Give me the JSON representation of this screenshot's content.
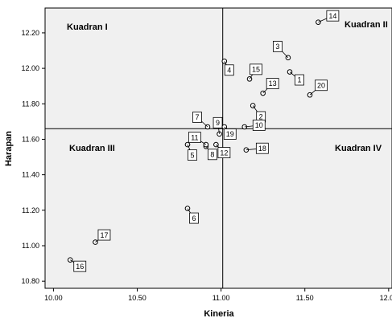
{
  "chart_data": {
    "type": "scatter",
    "title": "",
    "xlabel": "Kineria",
    "ylabel": "Harapan",
    "xlim": [
      9.95,
      12.02
    ],
    "ylim": [
      10.76,
      12.34
    ],
    "xticks": [
      "10.00",
      "10.50",
      "11.00",
      "11.50",
      "12.00"
    ],
    "xtick_values": [
      10.0,
      10.5,
      11.0,
      11.5,
      12.0
    ],
    "yticks": [
      "10.80",
      "11.00",
      "11.20",
      "11.40",
      "11.60",
      "11.80",
      "12.00",
      "12.20"
    ],
    "ytick_values": [
      10.8,
      11.0,
      11.2,
      11.4,
      11.6,
      11.8,
      12.0,
      12.2
    ],
    "reference_lines": {
      "x": 11.01,
      "y": 11.66
    },
    "quadrant_labels": {
      "q1": "Kuadran I",
      "q2": "Kuadran II",
      "q3": "Kuadran III",
      "q4": "Kuadran IV"
    },
    "grid": false,
    "points": [
      {
        "label": "1",
        "x": 11.41,
        "y": 11.98
      },
      {
        "label": "2",
        "x": 11.19,
        "y": 11.79
      },
      {
        "label": "3",
        "x": 11.4,
        "y": 12.06
      },
      {
        "label": "4",
        "x": 11.02,
        "y": 12.04
      },
      {
        "label": "5",
        "x": 10.8,
        "y": 11.57
      },
      {
        "label": "6",
        "x": 10.8,
        "y": 11.21
      },
      {
        "label": "7",
        "x": 10.92,
        "y": 11.67
      },
      {
        "label": "8",
        "x": 10.91,
        "y": 11.56
      },
      {
        "label": "9",
        "x": 10.99,
        "y": 11.63
      },
      {
        "label": "10",
        "x": 11.14,
        "y": 11.67
      },
      {
        "label": "11",
        "x": 10.91,
        "y": 11.57
      },
      {
        "label": "12",
        "x": 10.97,
        "y": 11.57
      },
      {
        "label": "13",
        "x": 11.25,
        "y": 11.86
      },
      {
        "label": "14",
        "x": 11.58,
        "y": 12.26
      },
      {
        "label": "15",
        "x": 11.17,
        "y": 11.94
      },
      {
        "label": "16",
        "x": 10.1,
        "y": 10.92
      },
      {
        "label": "17",
        "x": 10.25,
        "y": 11.02
      },
      {
        "label": "18",
        "x": 11.15,
        "y": 11.54
      },
      {
        "label": "19",
        "x": 11.02,
        "y": 11.67
      },
      {
        "label": "20",
        "x": 11.53,
        "y": 11.85
      }
    ]
  }
}
